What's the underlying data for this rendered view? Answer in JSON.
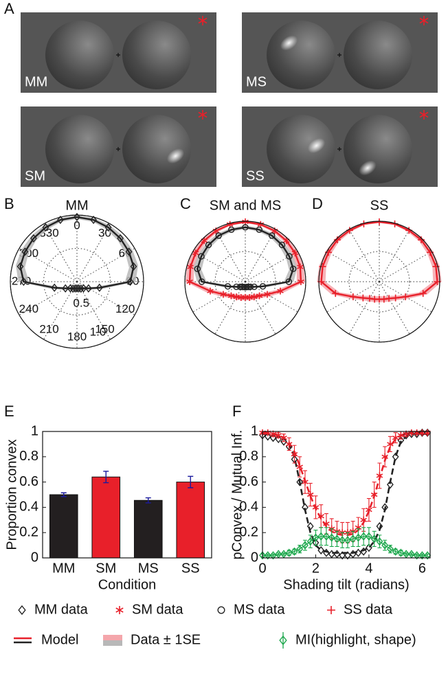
{
  "panel_labels": [
    "A",
    "B",
    "C",
    "D",
    "E",
    "F"
  ],
  "stimuli": [
    "MM",
    "MS",
    "SM",
    "SS"
  ],
  "chart_data": [
    {
      "type": "polar",
      "title": "MM",
      "tick_labels": true,
      "theta": [
        0,
        15,
        30,
        45,
        60,
        75,
        90,
        105,
        120,
        135,
        150,
        165,
        180,
        195,
        210,
        225,
        240,
        255,
        270,
        285,
        300,
        315,
        330,
        345
      ],
      "rlim": [
        0,
        1
      ],
      "rticks": [
        0.5,
        {
          "value": 1,
          "label": "1.0"
        }
      ],
      "thetaticks": [
        0,
        30,
        60,
        90,
        120,
        150,
        180,
        210,
        240,
        270,
        300,
        330
      ],
      "series": [
        {
          "color": "#222222",
          "band_color": "#b8b8b8",
          "marker": "diamond",
          "values": [
            0.97,
            0.96,
            0.94,
            0.92,
            0.9,
            0.88,
            0.8,
            0.35,
            0.2,
            0.14,
            0.12,
            0.105,
            0.1,
            0.105,
            0.12,
            0.14,
            0.2,
            0.35,
            0.8,
            0.88,
            0.9,
            0.92,
            0.94,
            0.96
          ],
          "se": [
            0.03,
            0.03,
            0.04,
            0.05,
            0.06,
            0.07,
            0.08,
            0.06,
            0.04,
            0.03,
            0.02,
            0.02,
            0.02,
            0.02,
            0.02,
            0.03,
            0.04,
            0.06,
            0.08,
            0.07,
            0.06,
            0.05,
            0.04,
            0.03
          ]
        }
      ]
    },
    {
      "type": "polar",
      "title": "SM and MS",
      "tick_labels": false,
      "theta": [
        0,
        15,
        30,
        45,
        60,
        75,
        90,
        105,
        120,
        135,
        150,
        165,
        180,
        195,
        210,
        225,
        240,
        255,
        270,
        285,
        300,
        315,
        330,
        345
      ],
      "rlim": [
        0,
        1
      ],
      "rticks": [
        0.5,
        {
          "value": 1,
          "label": "1.0"
        }
      ],
      "thetaticks": [
        0,
        30,
        60,
        90,
        120,
        150,
        180,
        210,
        240,
        270,
        300,
        330
      ],
      "series": [
        {
          "color": "#e8202a",
          "band_color": "#f4a6ab",
          "marker": "asterisk",
          "values": [
            0.99,
            0.98,
            0.97,
            0.96,
            0.95,
            0.94,
            0.92,
            0.6,
            0.42,
            0.33,
            0.29,
            0.27,
            0.26,
            0.27,
            0.29,
            0.33,
            0.42,
            0.6,
            0.92,
            0.94,
            0.95,
            0.96,
            0.97,
            0.98
          ],
          "se": [
            0.02,
            0.02,
            0.03,
            0.04,
            0.05,
            0.06,
            0.07,
            0.07,
            0.06,
            0.05,
            0.05,
            0.05,
            0.05,
            0.05,
            0.05,
            0.05,
            0.06,
            0.07,
            0.07,
            0.06,
            0.05,
            0.04,
            0.03,
            0.02
          ]
        },
        {
          "color": "#222222",
          "band_color": "#b8b8b8",
          "marker": "circle",
          "values": [
            0.9,
            0.89,
            0.88,
            0.86,
            0.84,
            0.82,
            0.72,
            0.3,
            0.17,
            0.12,
            0.1,
            0.09,
            0.09,
            0.09,
            0.1,
            0.12,
            0.17,
            0.3,
            0.72,
            0.82,
            0.84,
            0.86,
            0.88,
            0.89
          ],
          "se": [
            0.03,
            0.03,
            0.04,
            0.05,
            0.06,
            0.07,
            0.08,
            0.06,
            0.04,
            0.03,
            0.02,
            0.02,
            0.02,
            0.02,
            0.02,
            0.03,
            0.04,
            0.06,
            0.08,
            0.07,
            0.06,
            0.05,
            0.04,
            0.03
          ]
        }
      ]
    },
    {
      "type": "polar",
      "title": "SS",
      "tick_labels": false,
      "theta": [
        0,
        15,
        30,
        45,
        60,
        75,
        90,
        105,
        120,
        135,
        150,
        165,
        180,
        195,
        210,
        225,
        240,
        255,
        270,
        285,
        300,
        315,
        330,
        345
      ],
      "rlim": [
        0,
        1
      ],
      "rticks": [
        0.5,
        {
          "value": 1,
          "label": "1.0"
        }
      ],
      "thetaticks": [
        0,
        30,
        60,
        90,
        120,
        150,
        180,
        210,
        240,
        270,
        300,
        330
      ],
      "series": [
        {
          "color": "#e8202a",
          "band_color": "#f4a6ab",
          "marker": "plus",
          "values": [
            0.99,
            0.99,
            0.98,
            0.98,
            0.97,
            0.97,
            0.96,
            0.75,
            0.5,
            0.38,
            0.32,
            0.3,
            0.29,
            0.3,
            0.32,
            0.38,
            0.5,
            0.75,
            0.96,
            0.97,
            0.97,
            0.98,
            0.98,
            0.99
          ],
          "se": [
            0.02,
            0.02,
            0.03,
            0.04,
            0.05,
            0.06,
            0.07,
            0.07,
            0.06,
            0.05,
            0.05,
            0.05,
            0.05,
            0.05,
            0.05,
            0.05,
            0.06,
            0.07,
            0.07,
            0.06,
            0.05,
            0.04,
            0.03,
            0.02
          ]
        }
      ]
    },
    {
      "type": "bar",
      "ylabel": "Proportion convex",
      "xlabel": "Condition",
      "categories": [
        "MM",
        "SM",
        "MS",
        "SS"
      ],
      "values": [
        0.5,
        0.64,
        0.455,
        0.6
      ],
      "errors": [
        0.015,
        0.045,
        0.02,
        0.045
      ],
      "colors": [
        "#231f20",
        "#e8202a",
        "#231f20",
        "#e8202a"
      ],
      "error_color": "#1a1a9e",
      "ylim": [
        0,
        1
      ],
      "yticks": [
        0,
        0.2,
        0.4,
        0.6,
        0.8,
        1
      ]
    },
    {
      "type": "line",
      "ylabel": "pConvex / Mutual Inf.",
      "xlabel": "Shading tilt (radians)",
      "x": [
        0,
        0.2,
        0.4,
        0.6,
        0.8,
        1,
        1.2,
        1.4,
        1.6,
        1.8,
        2,
        2.2,
        2.4,
        2.6,
        2.8,
        3,
        3.2,
        3.4,
        3.6,
        3.8,
        4,
        4.2,
        4.4,
        4.6,
        4.8,
        5,
        5.2,
        5.4,
        5.6,
        5.8,
        6,
        6.2
      ],
      "xlim": [
        0,
        6.3
      ],
      "xticks": [
        0,
        2,
        4,
        6
      ],
      "ylim": [
        0,
        1
      ],
      "yticks": [
        0,
        0.2,
        0.4,
        0.6,
        0.8,
        1
      ],
      "series": [
        {
          "color": "#222222",
          "line": "dashed",
          "values": [
            0.98,
            0.98,
            0.98,
            0.97,
            0.95,
            0.9,
            0.8,
            0.6,
            0.38,
            0.2,
            0.1,
            0.06,
            0.05,
            0.04,
            0.04,
            0.04,
            0.04,
            0.04,
            0.05,
            0.06,
            0.08,
            0.13,
            0.22,
            0.38,
            0.6,
            0.8,
            0.92,
            0.96,
            0.98,
            0.98,
            0.98,
            0.98
          ]
        },
        {
          "color": "#e8202a",
          "line": "dashed",
          "values": [
            0.99,
            0.99,
            0.98,
            0.97,
            0.95,
            0.91,
            0.84,
            0.73,
            0.61,
            0.49,
            0.39,
            0.31,
            0.25,
            0.21,
            0.19,
            0.18,
            0.18,
            0.19,
            0.22,
            0.28,
            0.37,
            0.49,
            0.63,
            0.77,
            0.88,
            0.94,
            0.97,
            0.98,
            0.99,
            0.99,
            0.99,
            0.99
          ]
        },
        {
          "color": "#222222",
          "marker": "diamond",
          "values": [
            0.97,
            0.96,
            0.95,
            0.94,
            0.92,
            0.88,
            0.78,
            0.6,
            0.4,
            0.25,
            0.12,
            0.06,
            0.04,
            0.03,
            0.03,
            0.02,
            0.02,
            0.03,
            0.04,
            0.05,
            0.08,
            0.15,
            0.25,
            0.4,
            0.58,
            0.8,
            0.93,
            0.97,
            0.98,
            0.98,
            0.99,
            0.99
          ]
        },
        {
          "color": "#e8202a",
          "marker": "asterisk",
          "values": [
            0.99,
            0.99,
            0.98,
            0.97,
            0.95,
            0.9,
            0.82,
            0.72,
            0.6,
            0.5,
            0.4,
            0.33,
            0.27,
            0.23,
            0.21,
            0.2,
            0.2,
            0.21,
            0.24,
            0.3,
            0.38,
            0.5,
            0.65,
            0.8,
            0.9,
            0.95,
            0.97,
            0.98,
            0.99,
            0.99,
            0.99,
            0.99
          ],
          "errors": [
            0.01,
            0.01,
            0.02,
            0.02,
            0.03,
            0.05,
            0.07,
            0.08,
            0.09,
            0.09,
            0.09,
            0.09,
            0.08,
            0.08,
            0.08,
            0.08,
            0.08,
            0.08,
            0.08,
            0.09,
            0.09,
            0.1,
            0.1,
            0.08,
            0.06,
            0.04,
            0.03,
            0.02,
            0.01,
            0.01,
            0.01,
            0.01
          ]
        },
        {
          "color": "#1aa64a",
          "marker": "diamond",
          "line": "solid",
          "values": [
            0.02,
            0.02,
            0.02,
            0.03,
            0.03,
            0.04,
            0.05,
            0.07,
            0.1,
            0.13,
            0.16,
            0.17,
            0.17,
            0.16,
            0.15,
            0.14,
            0.14,
            0.15,
            0.16,
            0.17,
            0.17,
            0.15,
            0.13,
            0.1,
            0.07,
            0.05,
            0.04,
            0.03,
            0.03,
            0.02,
            0.02,
            0.02
          ],
          "errors": [
            0.01,
            0.01,
            0.01,
            0.01,
            0.01,
            0.02,
            0.02,
            0.03,
            0.04,
            0.05,
            0.06,
            0.07,
            0.07,
            0.07,
            0.06,
            0.06,
            0.06,
            0.06,
            0.07,
            0.07,
            0.07,
            0.06,
            0.05,
            0.04,
            0.03,
            0.02,
            0.02,
            0.01,
            0.01,
            0.01,
            0.01,
            0.01
          ]
        }
      ]
    }
  ],
  "legend": [
    {
      "label": "MM data",
      "marker": "diamond",
      "colors": [
        "#222222"
      ]
    },
    {
      "label": "SM data",
      "marker": "asterisk",
      "colors": [
        "#e8202a"
      ]
    },
    {
      "label": "MS data",
      "marker": "circle",
      "colors": [
        "#222222"
      ]
    },
    {
      "label": "SS data",
      "marker": "plus",
      "colors": [
        "#e8202a"
      ]
    },
    {
      "label": "Model",
      "marker": "line",
      "colors": [
        "#e8202a",
        "#222222"
      ]
    },
    {
      "label": "Data ± 1SE",
      "marker": "band",
      "colors": [
        "#f4a6ab",
        "#b8b8b8"
      ]
    },
    {
      "label": "MI(highlight, shape)",
      "marker": "diamond-err",
      "colors": [
        "#1aa64a"
      ]
    }
  ]
}
